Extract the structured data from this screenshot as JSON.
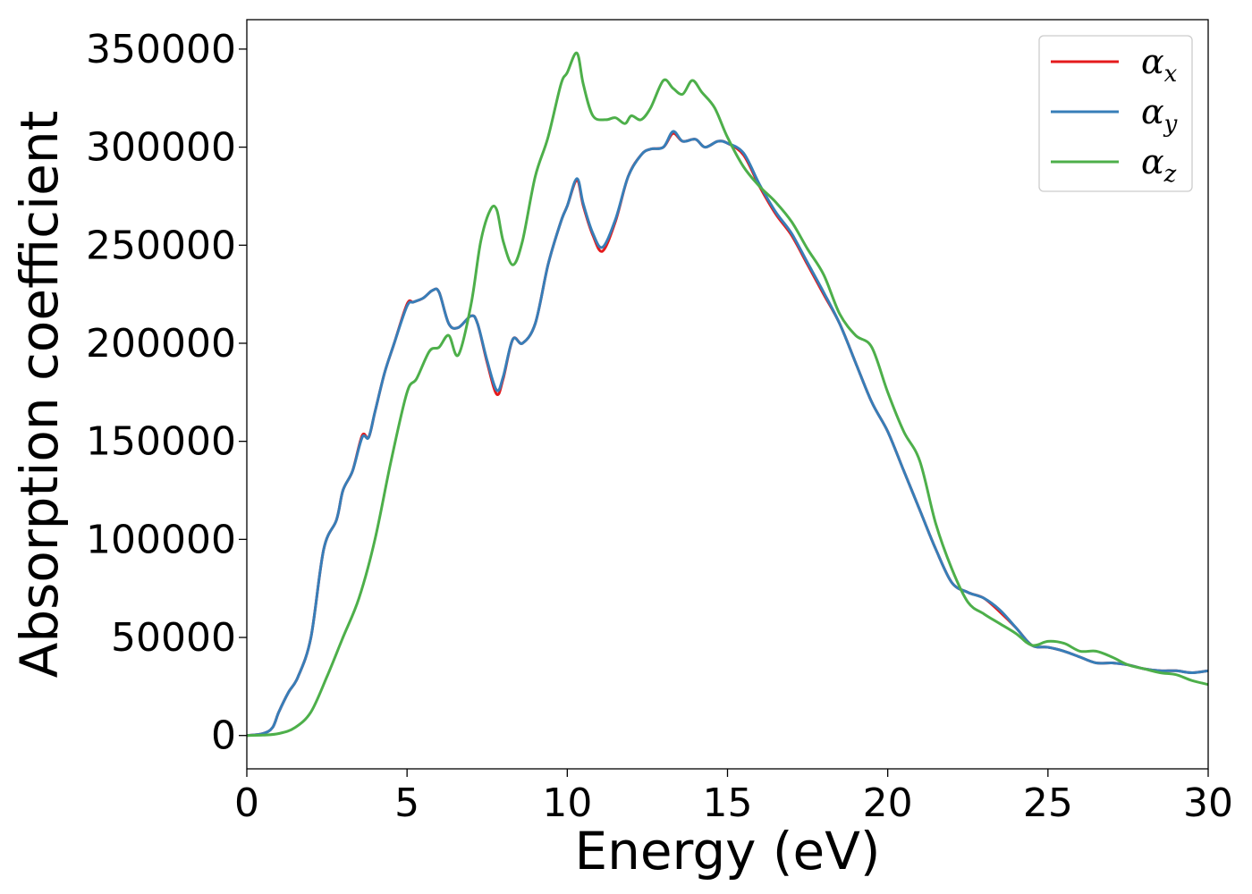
{
  "chart_data": {
    "type": "line",
    "xlabel": "Energy (eV)",
    "ylabel": "Absorption coefficient",
    "xlim": [
      0,
      30
    ],
    "ylim": [
      -17000,
      365000
    ],
    "xticks": [
      0,
      5,
      10,
      15,
      20,
      25,
      30
    ],
    "yticks": [
      0,
      50000,
      100000,
      150000,
      200000,
      250000,
      300000,
      350000
    ],
    "grid": false,
    "legend_position": "top-right",
    "series": [
      {
        "name": "α_x",
        "symbol": "α",
        "subscript": "x",
        "color": "#e41a1c",
        "x": [
          0,
          0.5,
          0.8,
          1.0,
          1.3,
          1.6,
          2.0,
          2.4,
          2.8,
          3.0,
          3.3,
          3.6,
          3.8,
          4.0,
          4.3,
          4.6,
          5.0,
          5.2,
          5.5,
          5.8,
          6.0,
          6.3,
          6.6,
          7.0,
          7.2,
          7.5,
          7.8,
          8.0,
          8.3,
          8.6,
          9.0,
          9.4,
          9.8,
          10.0,
          10.3,
          10.5,
          10.8,
          11.1,
          11.5,
          11.9,
          12.3,
          12.6,
          13.0,
          13.3,
          13.6,
          14.0,
          14.3,
          14.7,
          15.0,
          15.5,
          16.0,
          16.5,
          17.0,
          17.5,
          18.0,
          18.5,
          19.0,
          19.5,
          20.0,
          20.5,
          21.0,
          21.5,
          22.0,
          22.5,
          23.0,
          23.5,
          24.0,
          24.5,
          25.0,
          25.5,
          26.0,
          26.5,
          27.0,
          27.5,
          28.0,
          28.5,
          29.0,
          29.5,
          30.0
        ],
        "y": [
          0,
          1000,
          4000,
          12000,
          22000,
          30000,
          50000,
          95000,
          110000,
          125000,
          135000,
          153000,
          152000,
          165000,
          185000,
          200000,
          220000,
          221000,
          223000,
          227000,
          226000,
          210000,
          208000,
          214000,
          210000,
          190000,
          174000,
          182000,
          202000,
          200000,
          210000,
          240000,
          262000,
          270000,
          283000,
          270000,
          255000,
          247000,
          262000,
          285000,
          296000,
          299000,
          300000,
          307000,
          303000,
          304000,
          300000,
          303000,
          302000,
          296000,
          280000,
          266000,
          255000,
          240000,
          225000,
          210000,
          190000,
          170000,
          155000,
          135000,
          115000,
          95000,
          78000,
          73000,
          70000,
          63000,
          55000,
          46000,
          45000,
          43000,
          40000,
          37000,
          37000,
          36000,
          34000,
          33000,
          33000,
          32000,
          33000
        ]
      },
      {
        "name": "α_y",
        "symbol": "α",
        "subscript": "y",
        "color": "#377eb8",
        "x": [
          0,
          0.5,
          0.8,
          1.0,
          1.3,
          1.6,
          2.0,
          2.4,
          2.8,
          3.0,
          3.3,
          3.6,
          3.8,
          4.0,
          4.3,
          4.6,
          5.0,
          5.2,
          5.5,
          5.8,
          6.0,
          6.3,
          6.6,
          7.0,
          7.2,
          7.5,
          7.8,
          8.0,
          8.3,
          8.6,
          9.0,
          9.4,
          9.8,
          10.0,
          10.3,
          10.5,
          10.8,
          11.1,
          11.5,
          11.9,
          12.3,
          12.6,
          13.0,
          13.3,
          13.6,
          14.0,
          14.3,
          14.7,
          15.0,
          15.5,
          16.0,
          16.5,
          17.0,
          17.5,
          18.0,
          18.5,
          19.0,
          19.5,
          20.0,
          20.5,
          21.0,
          21.5,
          22.0,
          22.5,
          23.0,
          23.5,
          24.0,
          24.5,
          25.0,
          25.5,
          26.0,
          26.5,
          27.0,
          27.5,
          28.0,
          28.5,
          29.0,
          29.5,
          30.0
        ],
        "y": [
          0,
          1000,
          4000,
          12000,
          22000,
          30000,
          50000,
          95000,
          110000,
          125000,
          135000,
          152000,
          152000,
          165000,
          185000,
          200000,
          219000,
          221000,
          223000,
          227000,
          226000,
          210000,
          208000,
          214000,
          210000,
          191000,
          176000,
          183000,
          202000,
          200000,
          210000,
          240000,
          262000,
          270000,
          284000,
          271000,
          256000,
          249000,
          263000,
          285000,
          296000,
          299000,
          300000,
          308000,
          303000,
          304000,
          300000,
          303000,
          302000,
          297000,
          281000,
          267000,
          256000,
          241000,
          226000,
          210000,
          190000,
          170000,
          155000,
          135000,
          115000,
          95000,
          78000,
          73000,
          70000,
          64000,
          55000,
          46000,
          45000,
          43000,
          40000,
          37000,
          37000,
          36000,
          34000,
          33000,
          33000,
          32000,
          33000
        ]
      },
      {
        "name": "α_z",
        "symbol": "α",
        "subscript": "z",
        "color": "#4daf4a",
        "x": [
          0,
          0.5,
          1.0,
          1.5,
          2.0,
          2.5,
          3.0,
          3.5,
          4.0,
          4.5,
          5.0,
          5.3,
          5.7,
          6.0,
          6.3,
          6.6,
          7.0,
          7.3,
          7.6,
          7.8,
          8.0,
          8.3,
          8.6,
          9.0,
          9.4,
          9.8,
          10.0,
          10.3,
          10.5,
          10.8,
          11.2,
          11.5,
          11.8,
          12.0,
          12.3,
          12.6,
          13.0,
          13.3,
          13.6,
          13.9,
          14.2,
          14.6,
          15.0,
          15.5,
          16.0,
          16.5,
          17.0,
          17.5,
          18.0,
          18.5,
          19.0,
          19.5,
          20.0,
          20.5,
          21.0,
          21.5,
          22.0,
          22.5,
          23.0,
          23.5,
          24.0,
          24.5,
          25.0,
          25.5,
          26.0,
          26.5,
          27.0,
          27.5,
          28.0,
          28.5,
          29.0,
          29.5,
          30.0
        ],
        "y": [
          0,
          200,
          1000,
          4000,
          12000,
          30000,
          50000,
          70000,
          100000,
          140000,
          175000,
          182000,
          196000,
          198000,
          204000,
          194000,
          220000,
          252000,
          268000,
          268000,
          252000,
          240000,
          252000,
          285000,
          305000,
          332000,
          338000,
          348000,
          332000,
          316000,
          314000,
          315000,
          312000,
          316000,
          314000,
          320000,
          334000,
          330000,
          327000,
          334000,
          328000,
          320000,
          305000,
          290000,
          280000,
          272000,
          262000,
          248000,
          235000,
          215000,
          204000,
          198000,
          175000,
          155000,
          140000,
          108000,
          85000,
          68000,
          62000,
          57000,
          52000,
          46000,
          48000,
          47000,
          43000,
          43000,
          40000,
          36000,
          34000,
          32000,
          31000,
          28000,
          26000
        ]
      }
    ]
  }
}
